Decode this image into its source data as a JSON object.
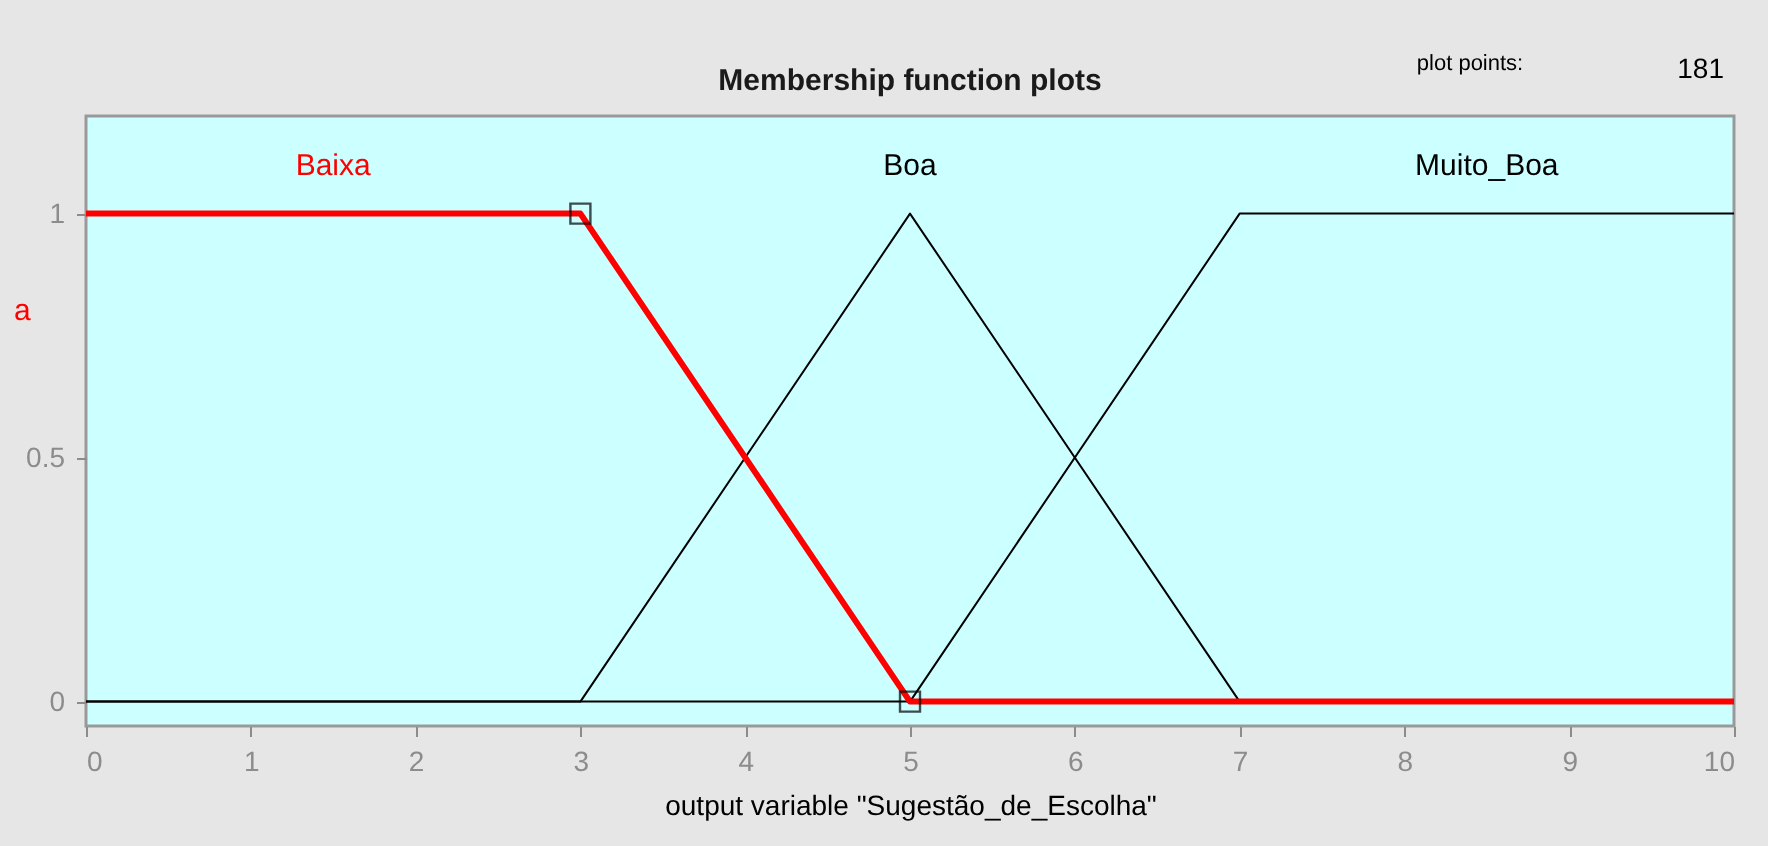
{
  "chart_data": {
    "type": "line",
    "title": "Membership function plots",
    "xlabel": "output variable \"Sugestão_de_Escolha\"",
    "xlim": [
      0,
      10
    ],
    "xticks": [
      0,
      1,
      2,
      3,
      4,
      5,
      6,
      7,
      8,
      9,
      10
    ],
    "ylim": [
      -0.05,
      1.2
    ],
    "yticks": [
      0,
      0.5,
      1
    ],
    "grid": false,
    "legend": false,
    "line_style": "solid",
    "series": [
      {
        "name": "Baixa",
        "color": "#ff0000",
        "x": [
          0,
          3,
          5,
          10
        ],
        "values": [
          1,
          1,
          0,
          0
        ]
      },
      {
        "name": "Boa",
        "color": "#000000",
        "x": [
          0,
          3,
          5,
          7,
          10
        ],
        "values": [
          0,
          0,
          1,
          0,
          0
        ]
      },
      {
        "name": "Muito_Boa",
        "color": "#000000",
        "x": [
          0,
          5,
          7,
          10
        ],
        "values": [
          0,
          0,
          1,
          1
        ]
      },
      {
        "type": "scatter",
        "marker": "square",
        "color": "#000000",
        "x": [
          3,
          5
        ],
        "values": [
          1,
          0
        ]
      }
    ],
    "annotations": [
      "plot points:",
      "181",
      "a"
    ]
  }
}
